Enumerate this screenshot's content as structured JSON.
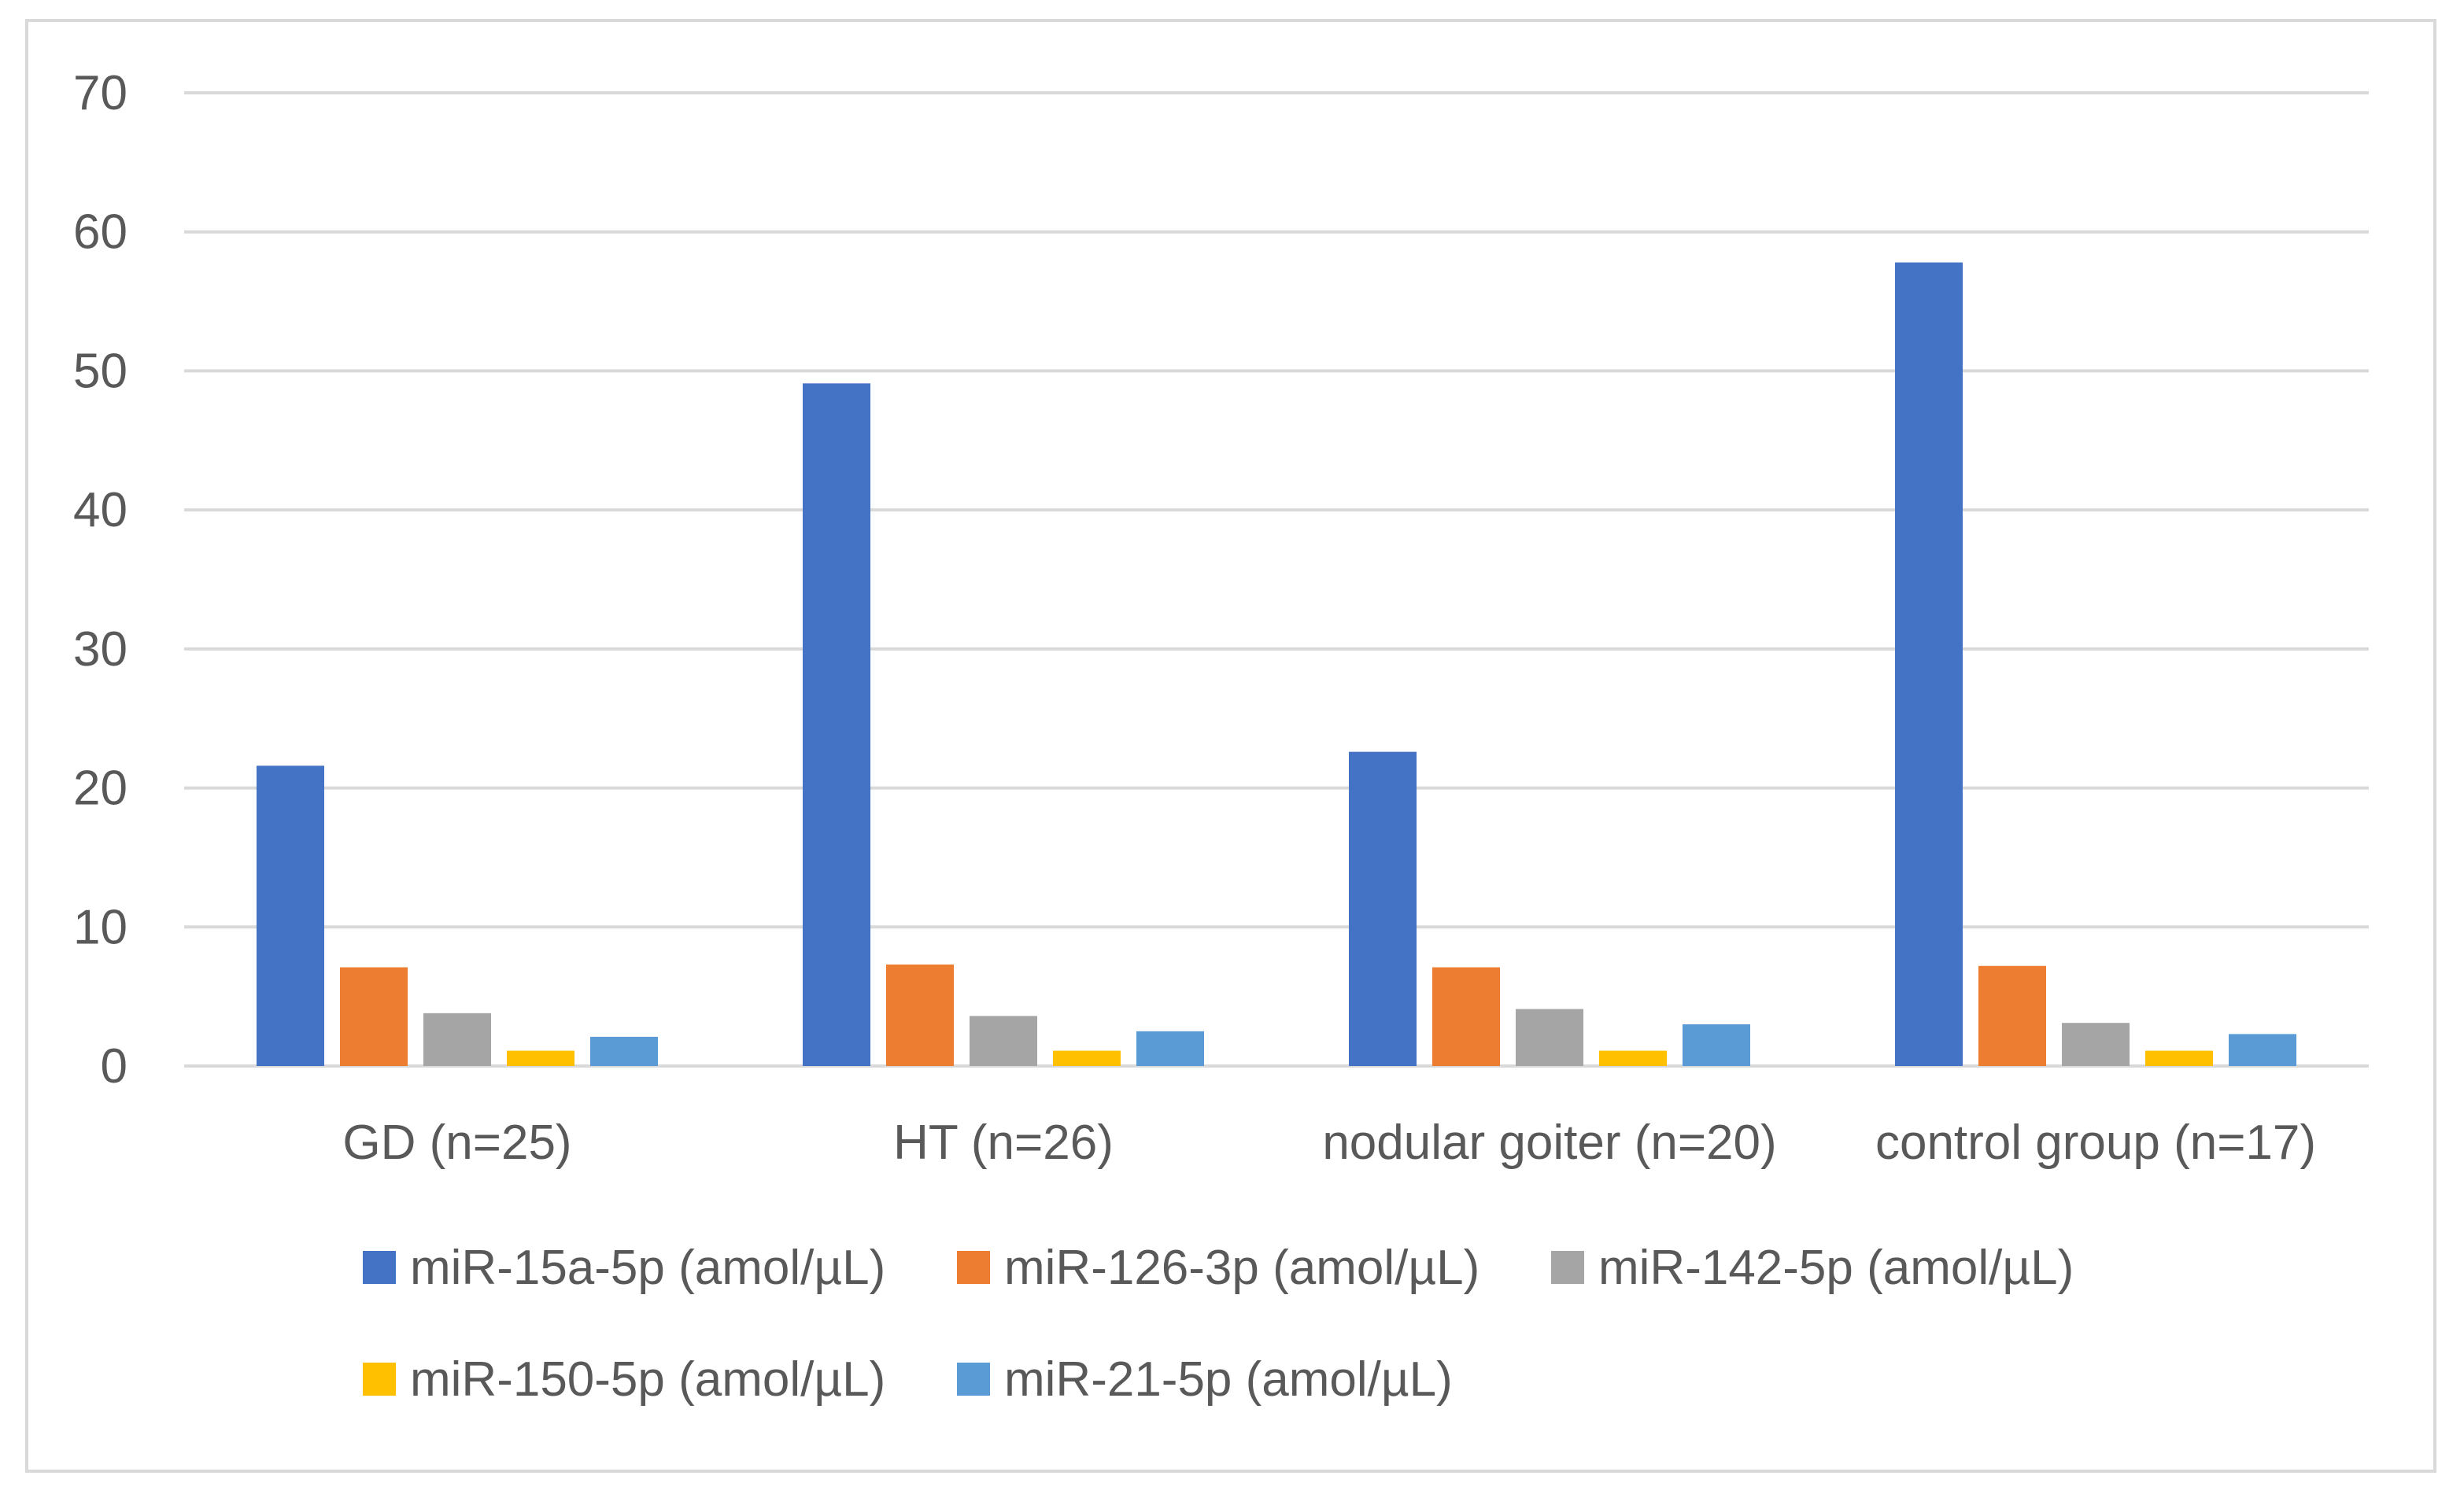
{
  "chart_data": {
    "type": "bar",
    "title": "",
    "xlabel": "",
    "ylabel": "",
    "ylim": [
      0,
      70
    ],
    "yticks": [
      0,
      10,
      20,
      30,
      40,
      50,
      60,
      70
    ],
    "grid": true,
    "legend_position": "bottom",
    "categories": [
      "GD (n=25)",
      "HT (n=26)",
      "nodular goiter (n=20)",
      "control group (n=17)"
    ],
    "series": [
      {
        "name": "miR-15a-5p (amol/µL)",
        "color": "#4472c4",
        "values": [
          21.6,
          49.1,
          22.6,
          57.8
        ]
      },
      {
        "name": "miR-126-3p (amol/µL)",
        "color": "#ed7d31",
        "values": [
          7.1,
          7.3,
          7.1,
          7.2
        ]
      },
      {
        "name": "miR-142-5p (amol/µL)",
        "color": "#a5a5a5",
        "values": [
          3.8,
          3.6,
          4.1,
          3.1
        ]
      },
      {
        "name": "miR-150-5p (amol/µL)",
        "color": "#ffc000",
        "values": [
          1.1,
          1.1,
          1.1,
          1.1
        ]
      },
      {
        "name": "miR-21-5p (amol/µL)",
        "color": "#5b9bd5",
        "values": [
          2.1,
          2.5,
          3.0,
          2.3
        ]
      }
    ]
  }
}
